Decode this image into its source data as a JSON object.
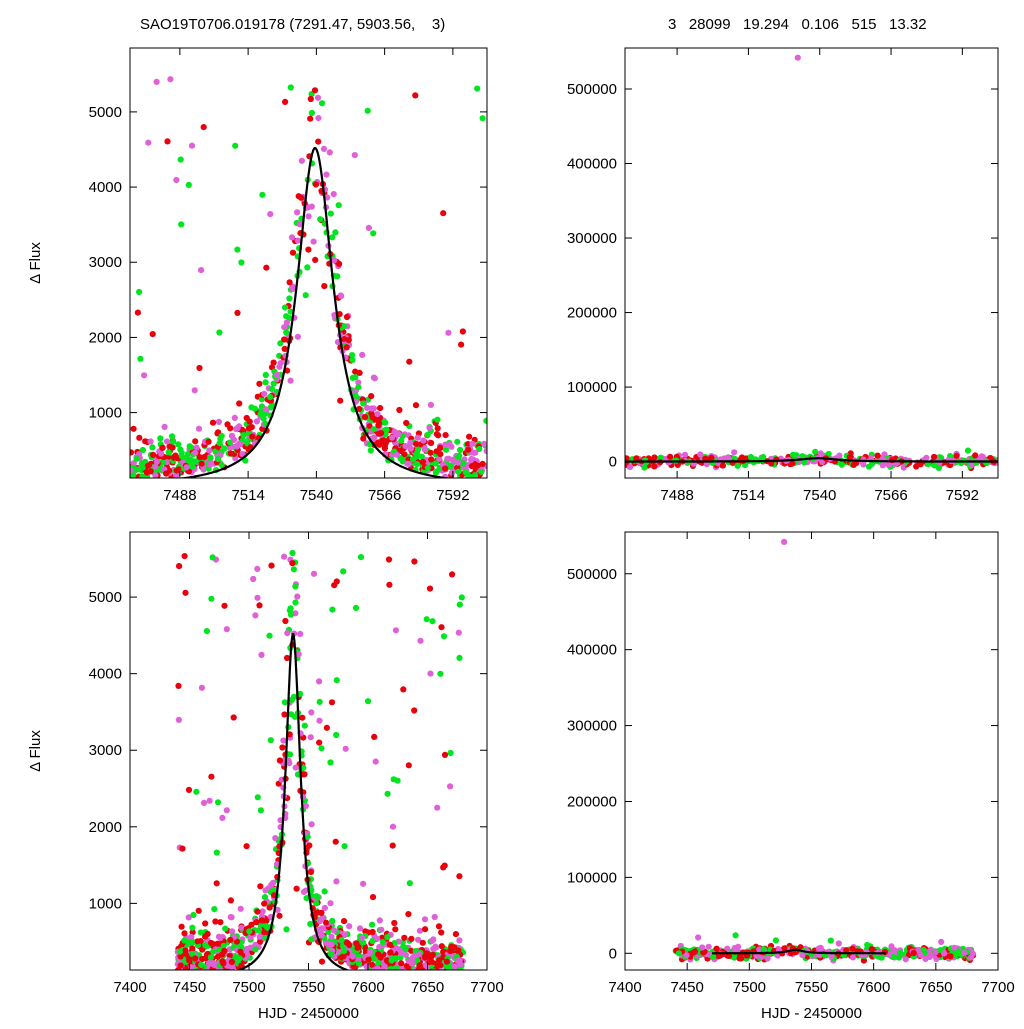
{
  "header": {
    "left": "SAO19T0706.019178 (7291.47, 5903.56,    3)",
    "right": "3   28099   19.294   0.106   515   13.32"
  },
  "colors": {
    "red": "#e8000b",
    "pink": "#e060d8",
    "green": "#00e61e",
    "fit": "#000000"
  },
  "chart_data": [
    {
      "id": "top-left",
      "type": "scatter",
      "xlim": [
        7469,
        7605
      ],
      "ylim": [
        130,
        5850
      ],
      "xticks": [
        7488,
        7514,
        7540,
        7566,
        7592
      ],
      "yticks": [
        1000,
        2000,
        3000,
        4000,
        5000
      ],
      "ylabel": "Δ Flux",
      "xlabel": "",
      "fit": {
        "shape": "lorentz",
        "center": 7539.5,
        "width": 8.5,
        "peak": 4520,
        "base": 0
      },
      "scatter_model": {
        "center": 7539.5,
        "width": 8.5,
        "peak": 4520,
        "spread": 0.18,
        "n": 780,
        "outliers": 55
      }
    },
    {
      "id": "top-right",
      "type": "scatter",
      "xlim": [
        7469,
        7605
      ],
      "ylim": [
        -22000,
        555000
      ],
      "xticks": [
        7488,
        7514,
        7540,
        7566,
        7592
      ],
      "yticks": [
        0,
        100000,
        200000,
        300000,
        400000,
        500000
      ],
      "ylabel": "",
      "xlabel": "",
      "fit": {
        "shape": "lorentz",
        "center": 7539.5,
        "width": 8.5,
        "peak": 4520,
        "base": 0
      },
      "scatter_model": {
        "center": 7539.5,
        "width": 8.5,
        "peak": 4520,
        "spread": 1.1,
        "n": 420,
        "outliers": 10,
        "extreme": [
          7532,
          542000
        ]
      }
    },
    {
      "id": "bottom-left",
      "type": "scatter",
      "xlim": [
        7400,
        7700
      ],
      "ylim": [
        130,
        5850
      ],
      "xticks": [
        7400,
        7450,
        7500,
        7550,
        7600,
        7650,
        7700
      ],
      "yticks": [
        1000,
        2000,
        3000,
        4000,
        5000
      ],
      "ylabel": "Δ Flux",
      "xlabel": "HJD - 2450000",
      "fit": {
        "shape": "lorentz",
        "center": 7537,
        "width": 7.8,
        "peak": 4520,
        "base": 0,
        "range": [
          7470,
          7610
        ]
      },
      "scatter_model": {
        "center": 7537,
        "width": 7.8,
        "peak": 4520,
        "spread": 0.22,
        "n": 900,
        "outliers": 140,
        "xrange": [
          7440,
          7680
        ]
      }
    },
    {
      "id": "bottom-right",
      "type": "scatter",
      "xlim": [
        7400,
        7700
      ],
      "ylim": [
        -22000,
        555000
      ],
      "xticks": [
        7400,
        7450,
        7500,
        7550,
        7600,
        7650,
        7700
      ],
      "yticks": [
        0,
        100000,
        200000,
        300000,
        400000,
        500000
      ],
      "ylabel": "",
      "xlabel": "HJD - 2450000",
      "fit": {
        "shape": "lorentz",
        "center": 7537,
        "width": 7.8,
        "peak": 4520,
        "base": 0,
        "range": [
          7470,
          7610
        ]
      },
      "scatter_model": {
        "center": 7537,
        "width": 7.8,
        "peak": 4520,
        "spread": 1.4,
        "n": 520,
        "outliers": 12,
        "xrange": [
          7440,
          7680
        ],
        "extreme": [
          7528,
          542000
        ]
      }
    }
  ]
}
